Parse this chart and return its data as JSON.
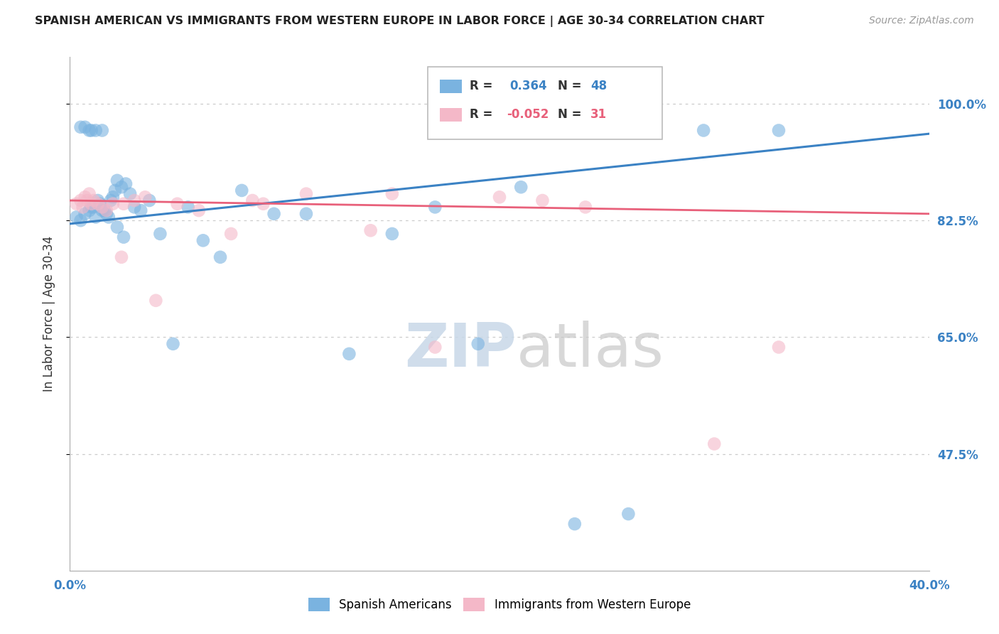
{
  "title": "SPANISH AMERICAN VS IMMIGRANTS FROM WESTERN EUROPE IN LABOR FORCE | AGE 30-34 CORRELATION CHART",
  "source": "Source: ZipAtlas.com",
  "ylabel": "In Labor Force | Age 30-34",
  "xlim": [
    0.0,
    40.0
  ],
  "ylim": [
    30.0,
    107.0
  ],
  "yticks": [
    47.5,
    65.0,
    82.5,
    100.0
  ],
  "blue_color": "#7ab3e0",
  "pink_color": "#f4b8c8",
  "blue_line_color": "#3b82c4",
  "pink_line_color": "#e8607a",
  "watermark1": "ZIP",
  "watermark2": "atlas",
  "blue_x": [
    0.3,
    0.5,
    0.7,
    0.9,
    1.0,
    1.1,
    1.2,
    1.3,
    1.4,
    1.5,
    1.6,
    1.7,
    1.8,
    1.9,
    2.0,
    2.1,
    2.2,
    2.4,
    2.6,
    2.8,
    3.0,
    3.3,
    3.7,
    4.2,
    4.8,
    5.5,
    6.2,
    7.0,
    8.0,
    9.5,
    11.0,
    13.0,
    15.0,
    17.0,
    19.0,
    21.0,
    23.5,
    26.0,
    29.5,
    33.0,
    2.2,
    2.5,
    0.5,
    0.7,
    0.9,
    1.0,
    1.2,
    1.5
  ],
  "blue_y": [
    83.0,
    82.5,
    83.5,
    84.0,
    84.5,
    84.5,
    83.0,
    85.5,
    85.0,
    84.0,
    84.0,
    83.5,
    83.0,
    85.5,
    86.0,
    87.0,
    88.5,
    87.5,
    88.0,
    86.5,
    84.5,
    84.0,
    85.5,
    80.5,
    64.0,
    84.5,
    79.5,
    77.0,
    87.0,
    83.5,
    83.5,
    62.5,
    80.5,
    84.5,
    64.0,
    87.5,
    37.0,
    38.5,
    96.0,
    96.0,
    81.5,
    80.0,
    96.5,
    96.5,
    96.0,
    96.0,
    96.0,
    96.0
  ],
  "pink_x": [
    0.3,
    0.5,
    0.6,
    0.7,
    0.8,
    0.9,
    1.0,
    1.1,
    1.3,
    1.5,
    1.7,
    2.0,
    2.4,
    3.0,
    3.5,
    4.0,
    5.0,
    6.0,
    7.5,
    9.0,
    11.0,
    14.0,
    17.0,
    20.0,
    22.0,
    24.0,
    30.0,
    33.0,
    2.5,
    8.5,
    15.0
  ],
  "pink_y": [
    85.0,
    85.5,
    84.5,
    86.0,
    85.5,
    86.5,
    85.0,
    85.5,
    85.0,
    84.5,
    84.0,
    85.0,
    77.0,
    85.5,
    86.0,
    70.5,
    85.0,
    84.0,
    80.5,
    85.0,
    86.5,
    81.0,
    63.5,
    86.0,
    85.5,
    84.5,
    49.0,
    63.5,
    85.0,
    85.5,
    86.5
  ],
  "blue_line_x0": 0.0,
  "blue_line_x1": 40.0,
  "blue_line_y0": 82.0,
  "blue_line_y1": 95.5,
  "pink_line_x0": 0.0,
  "pink_line_x1": 40.0,
  "pink_line_y0": 85.5,
  "pink_line_y1": 83.5
}
